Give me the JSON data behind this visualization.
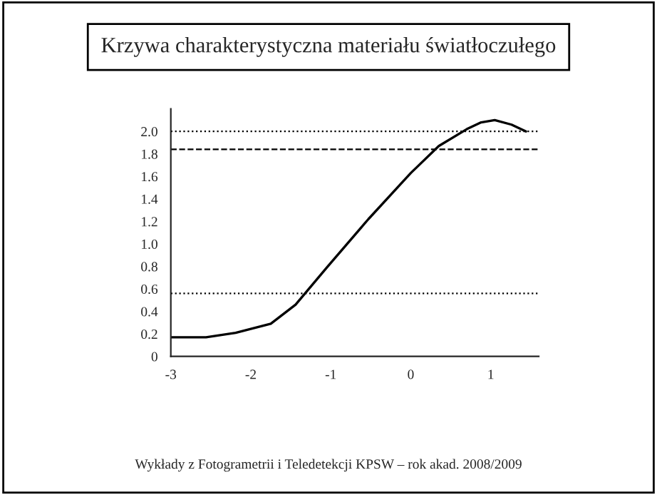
{
  "chart_data": {
    "type": "line",
    "title": "Krzywa charakterystyczna materiału światłoczułego",
    "x": [
      -3.0,
      -2.56,
      -2.19,
      -1.75,
      -1.44,
      -1.05,
      -0.53,
      0.0,
      0.35,
      0.7,
      0.88,
      1.05,
      1.26,
      1.44
    ],
    "series": [
      {
        "color": "#000000",
        "values": [
          0.17,
          0.17,
          0.21,
          0.29,
          0.46,
          0.79,
          1.22,
          1.63,
          1.87,
          2.02,
          2.08,
          2.1,
          2.06,
          2.0
        ]
      }
    ],
    "xlim": [
      -3.0,
      1.6
    ],
    "xticks": [
      -3,
      -2,
      -1,
      0,
      1
    ],
    "ylim": [
      0,
      2.2
    ],
    "yticks": [
      0,
      0.2,
      0.4,
      0.6,
      0.8,
      {
        "value": 1,
        "label": "1.0"
      },
      1.2,
      1.4,
      1.6,
      1.8,
      {
        "value": 2,
        "label": "2.0"
      }
    ],
    "ref_lines": [
      {
        "axis": "y",
        "value": 2.0,
        "line_style": "dotted"
      },
      {
        "axis": "y",
        "value": 1.84,
        "line_style": "dashed"
      },
      {
        "axis": "y",
        "value": 0.56,
        "line_style": "dotted"
      }
    ],
    "grid": false,
    "legend": false,
    "annotations": [
      "Wykłady z Fotogrametrii i Teledetekcji KPSW – rok akad. 2008/2009"
    ]
  }
}
